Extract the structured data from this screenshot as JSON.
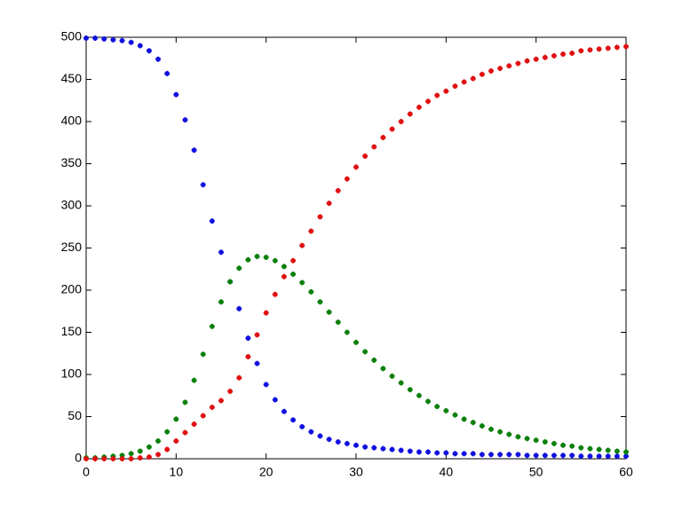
{
  "chart_data": {
    "type": "scatter",
    "x": [
      0,
      1,
      2,
      3,
      4,
      5,
      6,
      7,
      8,
      9,
      10,
      11,
      12,
      13,
      14,
      15,
      16,
      17,
      18,
      19,
      20,
      21,
      22,
      23,
      24,
      25,
      26,
      27,
      28,
      29,
      30,
      31,
      32,
      33,
      34,
      35,
      36,
      37,
      38,
      39,
      40,
      41,
      42,
      43,
      44,
      45,
      46,
      47,
      48,
      49,
      50,
      51,
      52,
      53,
      54,
      55,
      56,
      57,
      58,
      59,
      60
    ],
    "series": [
      {
        "color": "#1010e0",
        "values": [
          499,
          499,
          498,
          497,
          496,
          494,
          490,
          484,
          474,
          457,
          432,
          402,
          366,
          325,
          282,
          245,
          210,
          178,
          143,
          113,
          88,
          70,
          56,
          46,
          38,
          32,
          27,
          23,
          20,
          18,
          16,
          14,
          13,
          12,
          11,
          10,
          9,
          8,
          8,
          7,
          7,
          6,
          6,
          6,
          5,
          5,
          5,
          5,
          5,
          4,
          4,
          4,
          4,
          4,
          4,
          3,
          3,
          3,
          3,
          3,
          3
        ]
      },
      {
        "color": "#0a800a",
        "values": [
          1,
          1,
          2,
          3,
          4,
          6,
          9,
          14,
          21,
          32,
          47,
          67,
          93,
          124,
          157,
          186,
          210,
          226,
          236,
          240,
          239,
          235,
          228,
          219,
          209,
          198,
          186,
          174,
          162,
          150,
          138,
          127,
          117,
          107,
          98,
          90,
          82,
          75,
          68,
          62,
          57,
          52,
          47,
          43,
          39,
          35,
          32,
          29,
          26,
          24,
          22,
          20,
          18,
          16,
          15,
          13,
          12,
          11,
          10,
          9,
          8
        ]
      },
      {
        "color": "#e01010",
        "values": [
          0,
          0,
          0,
          0,
          0,
          0,
          1,
          2,
          5,
          11,
          21,
          31,
          41,
          51,
          61,
          69,
          80,
          96,
          121,
          147,
          173,
          195,
          216,
          235,
          253,
          270,
          287,
          303,
          318,
          332,
          346,
          359,
          370,
          381,
          391,
          400,
          409,
          417,
          424,
          431,
          436,
          442,
          447,
          451,
          456,
          460,
          463,
          466,
          469,
          472,
          474,
          476,
          478,
          480,
          481,
          484,
          485,
          486,
          487,
          488,
          489
        ]
      }
    ],
    "xlim": [
      0,
      60
    ],
    "xticks": [
      0,
      10,
      20,
      30,
      40,
      50,
      60
    ],
    "ylim": [
      0,
      500
    ],
    "yticks": [
      0,
      50,
      100,
      150,
      200,
      250,
      300,
      350,
      400,
      450,
      500
    ]
  }
}
